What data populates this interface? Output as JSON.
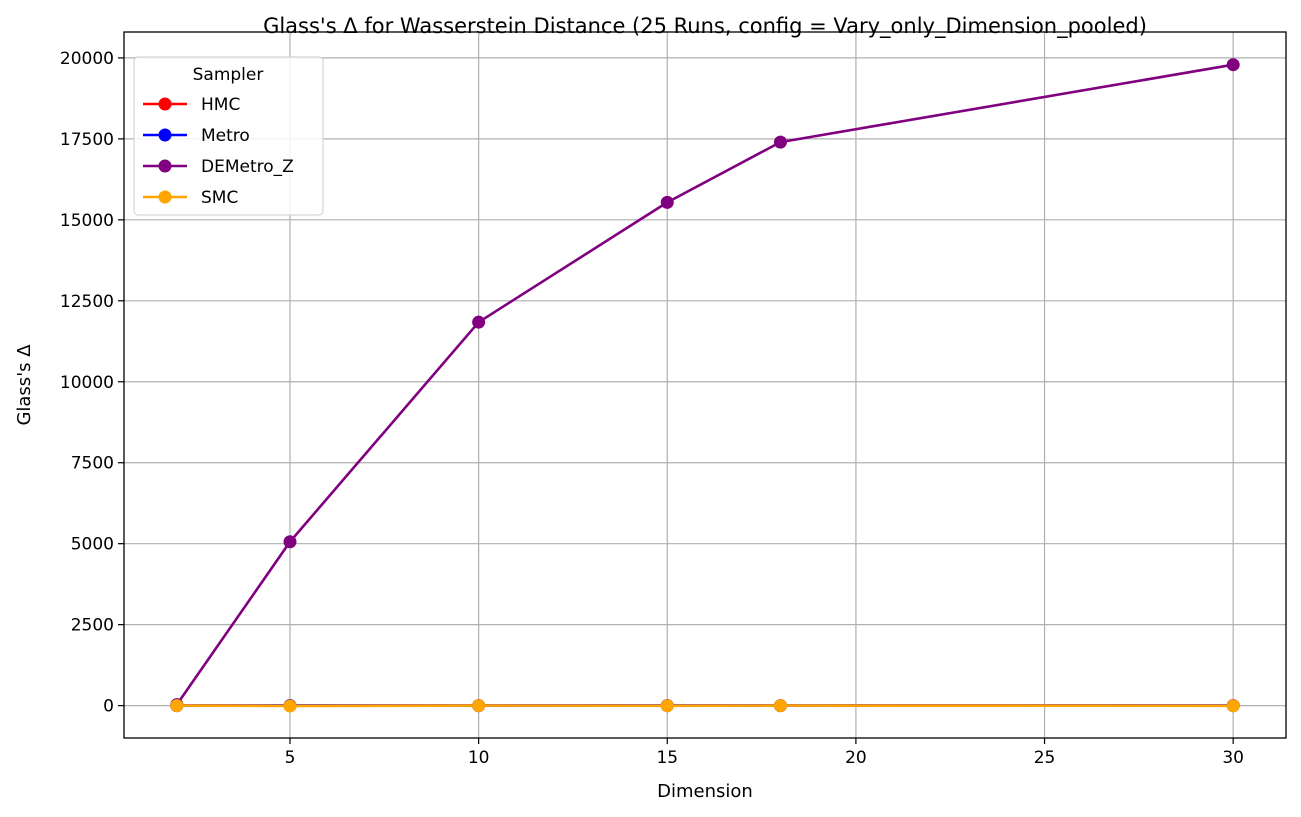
{
  "chart_data": {
    "type": "line",
    "title": "Glass's Δ for Wasserstein Distance (25 Runs, config = Vary_only_Dimension_pooled)",
    "xlabel": "Dimension",
    "ylabel": "Glass's Δ",
    "x": [
      2,
      5,
      10,
      15,
      18,
      30
    ],
    "xlim": [
      0.6,
      31.4
    ],
    "ylim": [
      -1000,
      20800
    ],
    "xticks": [
      5,
      10,
      15,
      20,
      25,
      30
    ],
    "yticks": [
      0,
      2500,
      5000,
      7500,
      10000,
      12500,
      15000,
      17500,
      20000
    ],
    "grid": true,
    "legend": {
      "title": "Sampler",
      "placement": "upper-left"
    },
    "series": [
      {
        "name": "HMC",
        "color": "#ff0000",
        "values": [
          0,
          0,
          0,
          0,
          0,
          0
        ]
      },
      {
        "name": "Metro",
        "color": "#0000ff",
        "values": [
          0,
          0,
          0,
          0,
          0,
          0
        ]
      },
      {
        "name": "DEMetro_Z",
        "color": "#800080",
        "values": [
          30,
          5060,
          11840,
          15540,
          17400,
          19790
        ]
      },
      {
        "name": "SMC",
        "color": "#ffa500",
        "values": [
          0,
          -10,
          0,
          -5,
          0,
          -5
        ]
      }
    ]
  }
}
